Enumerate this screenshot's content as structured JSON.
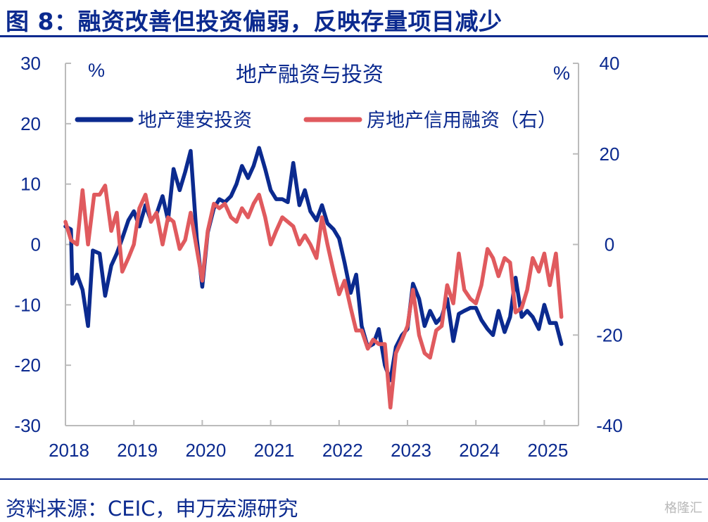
{
  "figure_title": "图 8：融资改善但投资偏弱，反映存量项目减少",
  "source": "资料来源：CEIC，申万宏源研究",
  "watermark": "格隆汇",
  "colors": {
    "investment": "#0b2a8f",
    "financing": "#e05a5e",
    "axis": "#bbbbbb",
    "text": "#0b2a8f"
  },
  "chart_data": {
    "type": "line",
    "title": "地产融资与投资",
    "y_left_unit": "%",
    "y_right_unit": "%",
    "y_left_range": [
      -30,
      30
    ],
    "y_left_ticks": [
      -30,
      -20,
      -10,
      0,
      10,
      20,
      30
    ],
    "y_right_range": [
      -40,
      40
    ],
    "y_right_ticks": [
      -40,
      -20,
      0,
      20,
      40
    ],
    "x_range": [
      2018.0,
      2025.5
    ],
    "x_ticks": [
      "2018",
      "2019",
      "2020",
      "2021",
      "2022",
      "2023",
      "2024",
      "2025"
    ],
    "legend_position": "top",
    "grid": false,
    "series": [
      {
        "name": "地产建安投资",
        "axis": "left",
        "color": "#0b2a8f",
        "points": [
          [
            2018.0,
            3.0
          ],
          [
            2018.08,
            2.5
          ],
          [
            2018.1,
            -6.5
          ],
          [
            2018.17,
            -5.0
          ],
          [
            2018.25,
            -7.5
          ],
          [
            2018.33,
            -13.5
          ],
          [
            2018.4,
            -1.0
          ],
          [
            2018.5,
            -1.5
          ],
          [
            2018.58,
            -8.5
          ],
          [
            2018.67,
            -3.5
          ],
          [
            2018.75,
            -1.5
          ],
          [
            2018.83,
            1.0
          ],
          [
            2018.92,
            4.0
          ],
          [
            2019.0,
            5.5
          ],
          [
            2019.08,
            3.0
          ],
          [
            2019.17,
            6.5
          ],
          [
            2019.25,
            4.0
          ],
          [
            2019.33,
            5.0
          ],
          [
            2019.42,
            8.0
          ],
          [
            2019.5,
            4.0
          ],
          [
            2019.58,
            12.5
          ],
          [
            2019.67,
            9.0
          ],
          [
            2019.75,
            12.0
          ],
          [
            2019.83,
            15.5
          ],
          [
            2019.92,
            1.0
          ],
          [
            2020.0,
            -7.0
          ],
          [
            2020.08,
            2.0
          ],
          [
            2020.17,
            6.0
          ],
          [
            2020.25,
            7.5
          ],
          [
            2020.33,
            7.0
          ],
          [
            2020.42,
            8.0
          ],
          [
            2020.5,
            10.0
          ],
          [
            2020.58,
            13.0
          ],
          [
            2020.67,
            11.0
          ],
          [
            2020.75,
            13.0
          ],
          [
            2020.83,
            16.0
          ],
          [
            2020.92,
            12.5
          ],
          [
            2021.0,
            9.0
          ],
          [
            2021.08,
            7.5
          ],
          [
            2021.17,
            7.5
          ],
          [
            2021.25,
            7.0
          ],
          [
            2021.33,
            13.5
          ],
          [
            2021.42,
            6.5
          ],
          [
            2021.5,
            9.0
          ],
          [
            2021.58,
            5.5
          ],
          [
            2021.67,
            4.0
          ],
          [
            2021.75,
            6.5
          ],
          [
            2021.83,
            3.5
          ],
          [
            2021.92,
            2.5
          ],
          [
            2022.0,
            1.0
          ],
          [
            2022.08,
            -3.0
          ],
          [
            2022.17,
            -8.0
          ],
          [
            2022.25,
            -5.0
          ],
          [
            2022.33,
            -13.5
          ],
          [
            2022.42,
            -17.0
          ],
          [
            2022.5,
            -16.5
          ],
          [
            2022.58,
            -14.0
          ],
          [
            2022.67,
            -20.0
          ],
          [
            2022.75,
            -22.5
          ],
          [
            2022.83,
            -17.0
          ],
          [
            2022.92,
            -15.0
          ],
          [
            2023.0,
            -14.0
          ],
          [
            2023.08,
            -6.5
          ],
          [
            2023.17,
            -9.0
          ],
          [
            2023.25,
            -13.5
          ],
          [
            2023.33,
            -11.0
          ],
          [
            2023.42,
            -13.0
          ],
          [
            2023.5,
            -12.0
          ],
          [
            2023.58,
            -9.0
          ],
          [
            2023.67,
            -16.0
          ],
          [
            2023.75,
            -11.5
          ],
          [
            2023.83,
            -11.0
          ],
          [
            2023.92,
            -10.5
          ],
          [
            2024.0,
            -10.5
          ],
          [
            2024.08,
            -12.5
          ],
          [
            2024.17,
            -14.0
          ],
          [
            2024.25,
            -15.0
          ],
          [
            2024.33,
            -11.0
          ],
          [
            2024.42,
            -14.5
          ],
          [
            2024.5,
            -12.0
          ],
          [
            2024.58,
            -5.5
          ],
          [
            2024.67,
            -12.0
          ],
          [
            2024.75,
            -11.0
          ],
          [
            2024.83,
            -12.0
          ],
          [
            2024.92,
            -14.0
          ],
          [
            2025.0,
            -10.0
          ],
          [
            2025.08,
            -13.0
          ],
          [
            2025.17,
            -13.0
          ],
          [
            2025.25,
            -16.5
          ]
        ]
      },
      {
        "name": "房地产信用融资（右）",
        "axis": "right",
        "color": "#e05a5e",
        "points": [
          [
            2018.0,
            5.0
          ],
          [
            2018.08,
            1.0
          ],
          [
            2018.17,
            0.0
          ],
          [
            2018.25,
            12.0
          ],
          [
            2018.33,
            0.0
          ],
          [
            2018.42,
            11.0
          ],
          [
            2018.5,
            11.0
          ],
          [
            2018.58,
            13.0
          ],
          [
            2018.67,
            3.0
          ],
          [
            2018.75,
            7.0
          ],
          [
            2018.83,
            -6.0
          ],
          [
            2018.92,
            -3.0
          ],
          [
            2019.0,
            0.0
          ],
          [
            2019.08,
            8.0
          ],
          [
            2019.17,
            11.0
          ],
          [
            2019.25,
            5.0
          ],
          [
            2019.33,
            7.0
          ],
          [
            2019.42,
            0.0
          ],
          [
            2019.5,
            6.0
          ],
          [
            2019.58,
            5.0
          ],
          [
            2019.67,
            -1.0
          ],
          [
            2019.75,
            1.0
          ],
          [
            2019.83,
            7.0
          ],
          [
            2019.92,
            -1.0
          ],
          [
            2020.0,
            -8.0
          ],
          [
            2020.08,
            3.0
          ],
          [
            2020.17,
            9.0
          ],
          [
            2020.25,
            8.0
          ],
          [
            2020.33,
            9.0
          ],
          [
            2020.42,
            6.0
          ],
          [
            2020.5,
            5.0
          ],
          [
            2020.58,
            8.0
          ],
          [
            2020.67,
            6.0
          ],
          [
            2020.75,
            9.0
          ],
          [
            2020.83,
            11.0
          ],
          [
            2020.92,
            6.0
          ],
          [
            2021.0,
            0.0
          ],
          [
            2021.08,
            3.0
          ],
          [
            2021.17,
            6.0
          ],
          [
            2021.25,
            5.0
          ],
          [
            2021.33,
            4.0
          ],
          [
            2021.42,
            0.0
          ],
          [
            2021.5,
            2.0
          ],
          [
            2021.58,
            0.0
          ],
          [
            2021.67,
            -3.0
          ],
          [
            2021.75,
            6.0
          ],
          [
            2021.83,
            0.0
          ],
          [
            2021.92,
            -6.0
          ],
          [
            2022.0,
            -11.0
          ],
          [
            2022.08,
            -8.0
          ],
          [
            2022.17,
            -14.0
          ],
          [
            2022.25,
            -19.0
          ],
          [
            2022.33,
            -19.0
          ],
          [
            2022.42,
            -23.0
          ],
          [
            2022.5,
            -21.0
          ],
          [
            2022.58,
            -22.0
          ],
          [
            2022.67,
            -22.0
          ],
          [
            2022.75,
            -36.0
          ],
          [
            2022.83,
            -24.0
          ],
          [
            2022.92,
            -21.0
          ],
          [
            2023.0,
            -18.0
          ],
          [
            2023.08,
            -10.0
          ],
          [
            2023.17,
            -20.0
          ],
          [
            2023.25,
            -24.0
          ],
          [
            2023.33,
            -25.0
          ],
          [
            2023.42,
            -19.0
          ],
          [
            2023.5,
            -18.0
          ],
          [
            2023.58,
            -9.0
          ],
          [
            2023.67,
            -13.0
          ],
          [
            2023.75,
            -2.0
          ],
          [
            2023.83,
            -10.0
          ],
          [
            2023.92,
            -12.0
          ],
          [
            2024.0,
            -13.0
          ],
          [
            2024.08,
            -9.0
          ],
          [
            2024.17,
            -1.0
          ],
          [
            2024.25,
            -3.0
          ],
          [
            2024.33,
            -7.0
          ],
          [
            2024.42,
            -3.0
          ],
          [
            2024.5,
            -4.0
          ],
          [
            2024.58,
            -15.0
          ],
          [
            2024.67,
            -14.0
          ],
          [
            2024.75,
            -10.0
          ],
          [
            2024.83,
            -3.0
          ],
          [
            2024.92,
            -6.0
          ],
          [
            2025.0,
            -2.0
          ],
          [
            2025.08,
            -9.0
          ],
          [
            2025.17,
            -2.0
          ],
          [
            2025.25,
            -16.0
          ]
        ]
      }
    ]
  }
}
